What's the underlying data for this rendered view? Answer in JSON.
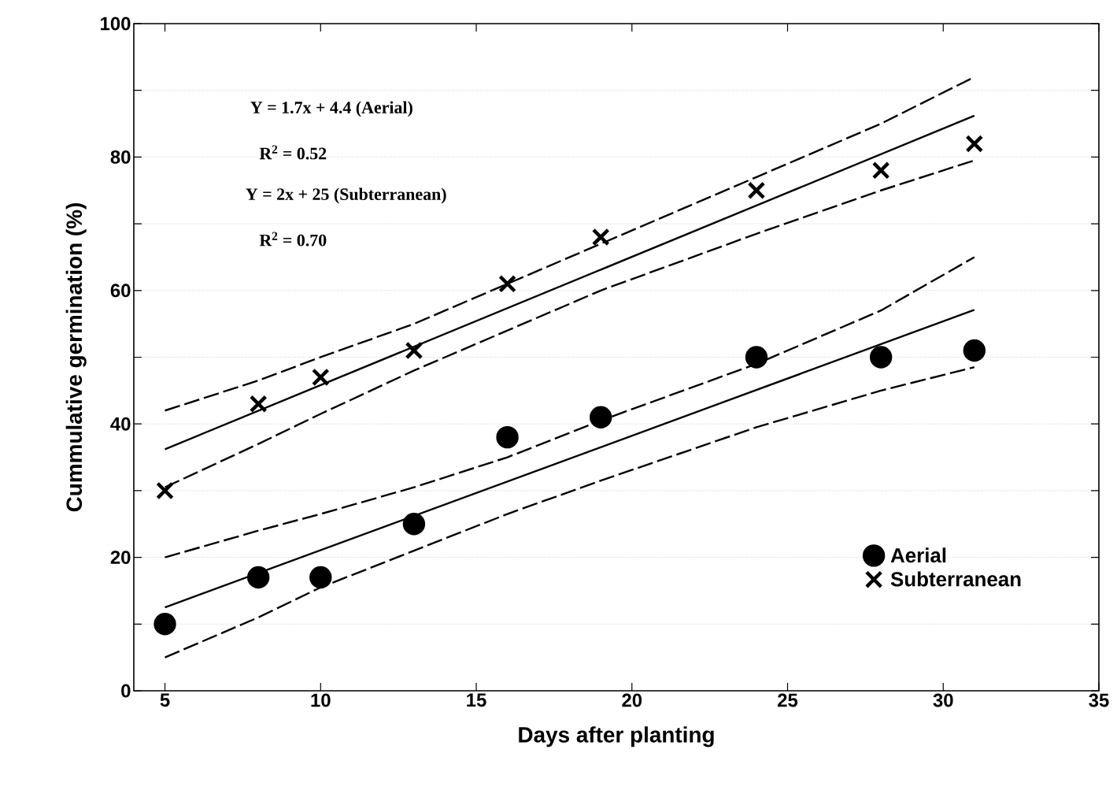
{
  "chart_data": {
    "type": "scatter",
    "xlabel": "Days after planting",
    "ylabel": "Cummulative germination (%)",
    "xlim": [
      4,
      35
    ],
    "ylim": [
      0,
      100
    ],
    "xticks": [
      5,
      10,
      15,
      20,
      25,
      30,
      35
    ],
    "yticks": [
      0,
      {
        "value": 10,
        "label": null
      },
      20,
      {
        "value": 30,
        "label": null
      },
      40,
      {
        "value": 50,
        "label": null
      },
      60,
      {
        "value": 70,
        "label": null
      },
      80,
      {
        "value": 90,
        "label": null
      },
      100
    ],
    "grid": "y",
    "legend": "bottom right",
    "annotations": [
      "Y = 1.7x + 4.4 (Aerial)",
      "R$^{2}$ = 0.52",
      "Y = 2x + 25 (Subterranean)",
      "R$^{2}$ = 0.70"
    ],
    "series": [
      {
        "name": "Aerial",
        "marker": "circle",
        "color": "#000000",
        "x": [
          5,
          8,
          10,
          13,
          16,
          19,
          24,
          28,
          31
        ],
        "values": [
          10,
          17,
          17,
          25,
          38,
          41,
          50,
          50,
          51
        ]
      },
      {
        "name": "Subterranean",
        "marker": "cross",
        "color": "#000000",
        "x": [
          5,
          8,
          10,
          13,
          16,
          19,
          24,
          28,
          31
        ],
        "values": [
          30,
          43,
          47,
          51,
          61,
          68,
          75,
          78,
          82
        ]
      },
      {
        "type": "line",
        "line_style": "solid",
        "color": "#000000",
        "x": [
          5,
          31
        ],
        "values": [
          12.5,
          57.1
        ]
      },
      {
        "type": "line",
        "line_style": "dashed",
        "color": "#000000",
        "x": [
          5,
          8,
          10,
          13,
          16,
          19,
          24,
          28,
          31
        ],
        "values": [
          20,
          24,
          26.5,
          30.5,
          35,
          40.5,
          49,
          57,
          65
        ]
      },
      {
        "type": "line",
        "line_style": "dashed",
        "color": "#000000",
        "x": [
          5,
          8,
          10,
          13,
          16,
          19,
          24,
          28,
          31
        ],
        "values": [
          5,
          11,
          15.5,
          21,
          26.5,
          31.5,
          39.5,
          45,
          48.5
        ]
      },
      {
        "type": "line",
        "line_style": "solid",
        "color": "#000000",
        "x": [
          5,
          31
        ],
        "values": [
          36.2,
          86.2
        ]
      },
      {
        "type": "line",
        "line_style": "dashed",
        "color": "#000000",
        "x": [
          5,
          8,
          10,
          13,
          16,
          19,
          24,
          28,
          31
        ],
        "values": [
          42,
          46.5,
          50,
          55,
          61,
          67,
          77,
          85,
          92
        ]
      },
      {
        "type": "line",
        "line_style": "dashed",
        "color": "#000000",
        "x": [
          5,
          8,
          10,
          13,
          16,
          19,
          24,
          28,
          31
        ],
        "values": [
          30.5,
          37,
          41.5,
          48,
          54,
          60,
          68.5,
          75,
          79.5
        ]
      }
    ]
  }
}
